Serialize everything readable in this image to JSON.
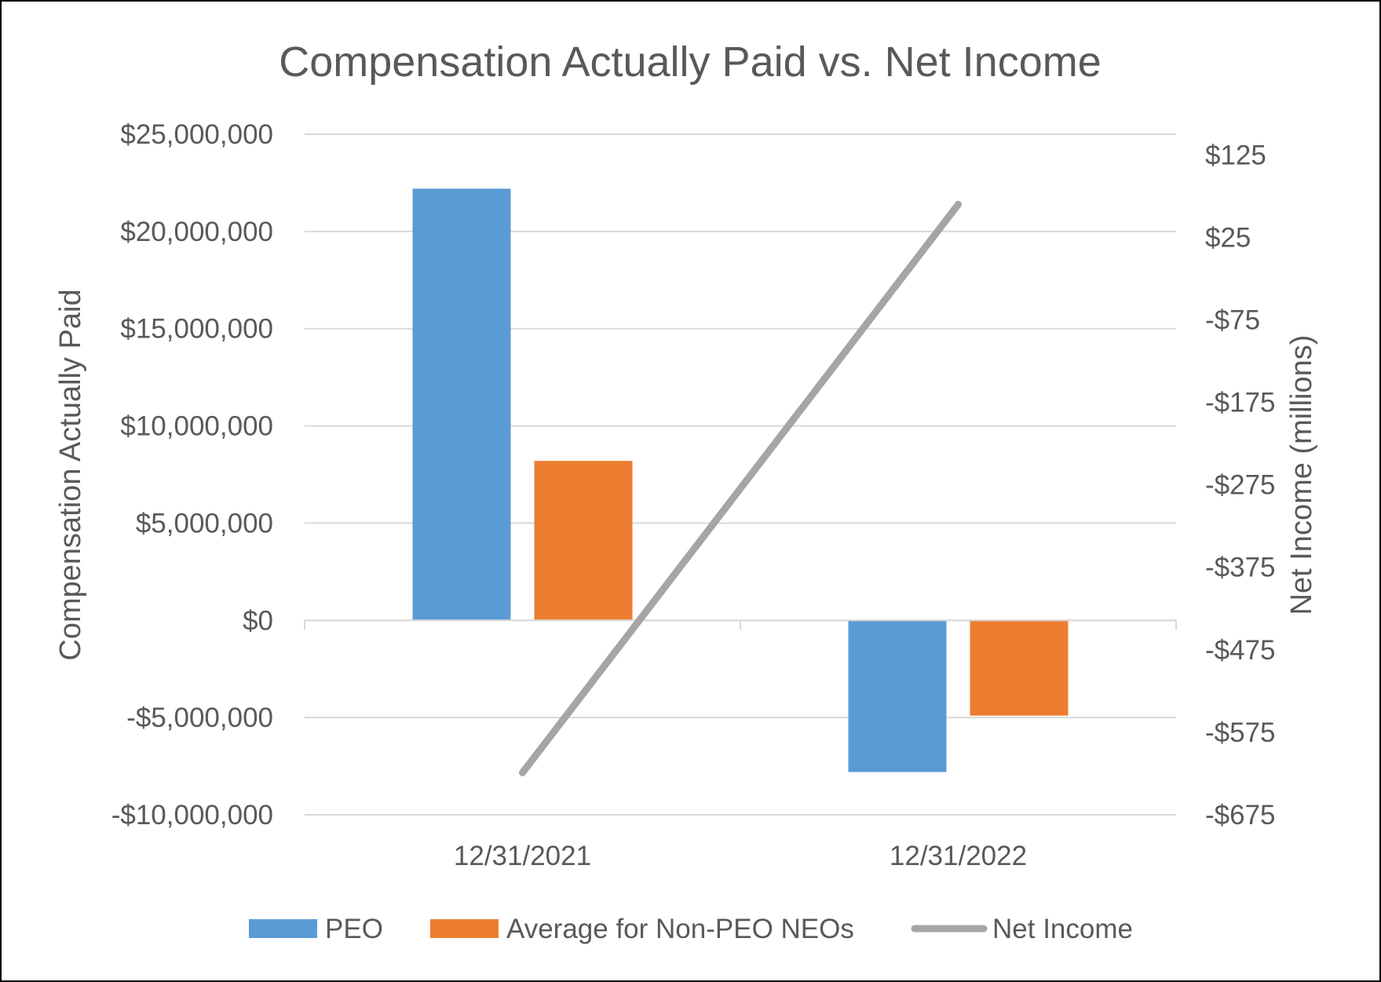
{
  "chart_data": {
    "type": "bar",
    "title": "Compensation Actually Paid vs. Net Income",
    "categories": [
      "12/31/2021",
      "12/31/2022"
    ],
    "ylabel": "Compensation Actually Paid",
    "y2label": "Net Income (millions)",
    "ylim": [
      -10000000,
      25000000
    ],
    "y_ticks": [
      25000000,
      20000000,
      15000000,
      10000000,
      5000000,
      0,
      -5000000,
      -10000000
    ],
    "y_tick_labels": [
      "$25,000,000",
      "$20,000,000",
      "$15,000,000",
      "$10,000,000",
      "$5,000,000",
      "$0",
      "-$5,000,000",
      "-$10,000,000"
    ],
    "y2lim": [
      -675,
      150
    ],
    "y2_ticks": [
      125,
      25,
      -75,
      -175,
      -275,
      -375,
      -475,
      -575,
      -675
    ],
    "y2_tick_labels": [
      "$125",
      "$25",
      "-$75",
      "-$175",
      "-$275",
      "-$375",
      "-$475",
      "-$575",
      "-$675"
    ],
    "grid": true,
    "legend": "bottom",
    "series": [
      {
        "name": "PEO",
        "type": "bar",
        "axis": "left",
        "color": "#5B9BD5",
        "values": [
          22200000,
          -7800000
        ]
      },
      {
        "name": "Average for Non-PEO NEOs",
        "type": "bar",
        "axis": "left",
        "color": "#ED7D31",
        "values": [
          8200000,
          -4900000
        ]
      },
      {
        "name": "Net Income",
        "type": "line",
        "axis": "right",
        "color": "#A5A5A5",
        "values": [
          -624,
          65
        ]
      }
    ]
  }
}
